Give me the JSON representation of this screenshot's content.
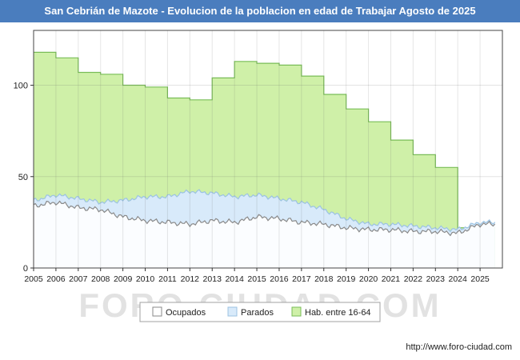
{
  "header": {
    "title": "San Cebrián de Mazote - Evolucion de la poblacion en edad de Trabajar Agosto de 2025",
    "bg": "#4a7dbe",
    "fg": "#ffffff"
  },
  "watermark": "FORO-CIUDAD.COM",
  "footer": {
    "url": "http://www.foro-ciudad.com"
  },
  "legend": {
    "items": [
      {
        "label": "Ocupados",
        "fill": "#ffffff",
        "stroke": "#8a8a8a"
      },
      {
        "label": "Parados",
        "fill": "#d8eafa",
        "stroke": "#9cc3e2"
      },
      {
        "label": "Hab. entre 16-64",
        "fill": "#cff0a8",
        "stroke": "#79bd57"
      }
    ]
  },
  "chart_data": {
    "type": "area",
    "title": "San Cebrián de Mazote - Evolucion de la poblacion en edad de Trabajar Agosto de 2025",
    "x_years": [
      2005,
      2006,
      2007,
      2008,
      2009,
      2010,
      2011,
      2012,
      2013,
      2014,
      2015,
      2016,
      2017,
      2018,
      2019,
      2020,
      2021,
      2022,
      2023,
      2024,
      2025
    ],
    "x_end": 2025.667,
    "ylim": [
      0,
      130
    ],
    "yticks": [
      0,
      50,
      100
    ],
    "grid": true,
    "legend_position": "bottom",
    "series": [
      {
        "id": "hab-16-64",
        "name": "Hab. entre 16-64",
        "style": "step",
        "fill": "#cff0a8",
        "stroke": "#79bd57",
        "opacity": 1,
        "values": [
          118,
          115,
          107,
          106,
          100,
          99,
          93,
          92,
          104,
          113,
          112,
          111,
          105,
          95,
          87,
          80,
          70,
          62,
          55,
          22,
          22
        ]
      },
      {
        "id": "parados",
        "name": "Parados",
        "style": "line",
        "fill": "#d8eafa",
        "stroke": "#9cc3e2",
        "opacity": 1,
        "jitter": 1.4,
        "values": [
          37,
          40,
          38,
          36,
          37,
          39,
          39,
          42,
          41,
          39,
          40,
          38,
          36,
          32,
          27,
          24,
          24,
          23,
          22,
          21,
          25
        ]
      },
      {
        "id": "ocupados",
        "name": "Ocupados",
        "style": "line",
        "fill": "#ffffff",
        "stroke": "#8a8a8a",
        "opacity": 0.9,
        "jitter": 1.6,
        "values": [
          34,
          36,
          33,
          32,
          28,
          26,
          25,
          24,
          26,
          25,
          28,
          27,
          25,
          24,
          22,
          21,
          21,
          20,
          20,
          19,
          24
        ]
      }
    ]
  }
}
